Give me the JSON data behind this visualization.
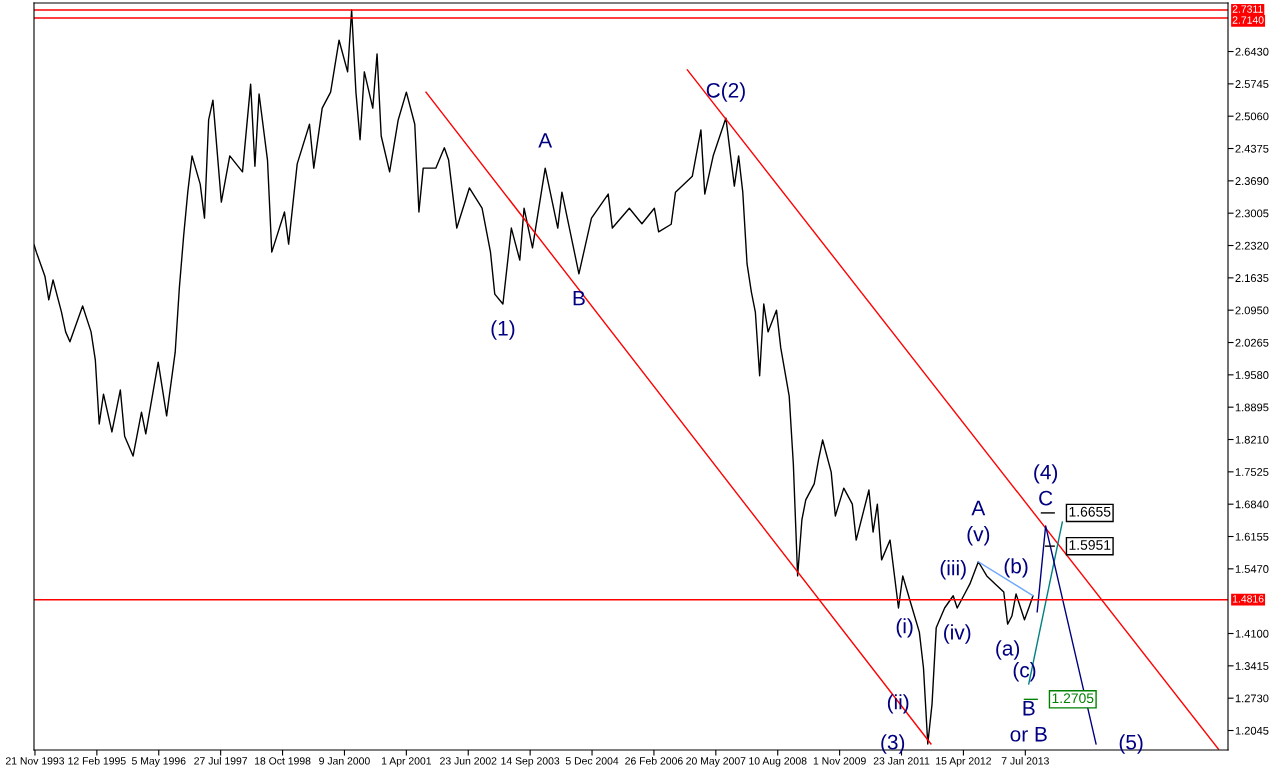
{
  "chart_data": {
    "type": "line",
    "series": [
      {
        "color": "#000000",
        "x": [
          "1993-11-15",
          "1993-12",
          "1994-02",
          "1994-03",
          "1994-04",
          "1994-06",
          "1994-07",
          "1994-08",
          "1994-11",
          "1995-01",
          "1995-02",
          "1995-03",
          "1995-04",
          "1995-06",
          "1995-08",
          "1995-09",
          "1995-11",
          "1996-01",
          "1996-02",
          "1996-05",
          "1996-07",
          "1996-08",
          "1996-09",
          "1996-10",
          "1996-11",
          "1996-12",
          "1997-01",
          "1997-03",
          "1997-04",
          "1997-05",
          "1997-06",
          "1997-08",
          "1997-10",
          "1998-01",
          "1998-03",
          "1998-04",
          "1998-05",
          "1998-07",
          "1998-08",
          "1998-11",
          "1998-12",
          "1999-02",
          "1999-05",
          "1999-06",
          "1999-08",
          "1999-10",
          "1999-12",
          "2000-02",
          "2000-03",
          "2000-04",
          "2000-05",
          "2000-06",
          "2000-08",
          "2000-09",
          "2000-10",
          "2000-12",
          "2001-02",
          "2001-04",
          "2001-06",
          "2001-07",
          "2001-08",
          "2001-11",
          "2002-01",
          "2002-02",
          "2002-04",
          "2002-07",
          "2002-10",
          "2002-12",
          "2003-01",
          "2003-03",
          "2003-05",
          "2003-07",
          "2003-08",
          "2003-10",
          "2004-01",
          "2004-04",
          "2004-05",
          "2004-09",
          "2004-12",
          "2005-04",
          "2005-05",
          "2005-09",
          "2005-12",
          "2006-03",
          "2006-04",
          "2006-07",
          "2006-08",
          "2006-12",
          "2007-02",
          "2007-03",
          "2007-05",
          "2007-08",
          "2007-10",
          "2007-11",
          "2007-12",
          "2008-01",
          "2008-02",
          "2008-03",
          "2008-04",
          "2008-05",
          "2008-06",
          "2008-08",
          "2008-09",
          "2008-11",
          "2008-12",
          "2009-01",
          "2009-02",
          "2009-03",
          "2009-05",
          "2009-06",
          "2009-07",
          "2009-09",
          "2009-10",
          "2009-12",
          "2010-02",
          "2010-03",
          "2010-06",
          "2010-07",
          "2010-08",
          "2010-09",
          "2010-11",
          "2011-01",
          "2011-02",
          "2011-04",
          "2011-06",
          "2011-07",
          "2011-08",
          "2011-09",
          "2011-10",
          "2011-12",
          "2012-02",
          "2012-03",
          "2012-05",
          "2012-06",
          "2012-08",
          "2012-10",
          "2012-12",
          "2013-02",
          "2013-03",
          "2013-04",
          "2013-05",
          "2013-07",
          "2013-08",
          "2013-09"
        ],
        "values": [
          2.233,
          2.218,
          2.167,
          2.117,
          2.159,
          2.091,
          2.049,
          2.028,
          2.104,
          2.049,
          1.989,
          1.854,
          1.917,
          1.837,
          1.926,
          1.828,
          1.786,
          1.879,
          1.833,
          1.985,
          1.871,
          1.939,
          2.006,
          2.142,
          2.252,
          2.345,
          2.422,
          2.362,
          2.29,
          2.498,
          2.54,
          2.324,
          2.422,
          2.388,
          2.574,
          2.4,
          2.553,
          2.413,
          2.218,
          2.303,
          2.235,
          2.405,
          2.489,
          2.396,
          2.523,
          2.557,
          2.667,
          2.6,
          2.731,
          2.557,
          2.456,
          2.6,
          2.523,
          2.638,
          2.464,
          2.388,
          2.498,
          2.557,
          2.489,
          2.303,
          2.396,
          2.396,
          2.439,
          2.413,
          2.269,
          2.354,
          2.311,
          2.218,
          2.129,
          2.108,
          2.269,
          2.201,
          2.311,
          2.227,
          2.396,
          2.269,
          2.345,
          2.172,
          2.29,
          2.341,
          2.269,
          2.311,
          2.278,
          2.311,
          2.261,
          2.277,
          2.345,
          2.379,
          2.477,
          2.341,
          2.422,
          2.502,
          2.358,
          2.422,
          2.345,
          2.193,
          2.134,
          2.091,
          1.956,
          2.108,
          2.049,
          2.095,
          2.015,
          1.913,
          1.769,
          1.532,
          1.651,
          1.693,
          1.727,
          1.778,
          1.82,
          1.752,
          1.659,
          1.718,
          1.684,
          1.608,
          1.714,
          1.625,
          1.684,
          1.566,
          1.608,
          1.464,
          1.532,
          1.473,
          1.413,
          1.337,
          1.176,
          1.261,
          1.422,
          1.464,
          1.49,
          1.464,
          1.498,
          1.515,
          1.562,
          1.532,
          1.515,
          1.498,
          1.43,
          1.447,
          1.494,
          1.439,
          1.464,
          1.49
        ]
      },
      {
        "color": "#ff0000",
        "x": [
          "2001-08-21",
          "2011-08-24"
        ],
        "values": [
          2.557,
          1.176
        ]
      },
      {
        "color": "#ff0000",
        "x": [
          "2006-10-26",
          "2017-05-05"
        ],
        "values": [
          2.604,
          1.165
        ]
      },
      {
        "color": "#6fa8ff",
        "x": [
          "2012-08",
          "2013-09"
        ],
        "values": [
          1.562,
          1.49
        ]
      },
      {
        "color": "#008080",
        "x": [
          "2013-08",
          "2014-04"
        ],
        "values": [
          1.303,
          1.646
        ]
      },
      {
        "color": "#000080",
        "x": [
          "2013-10",
          "2013-12",
          "2014-12"
        ],
        "values": [
          1.456,
          1.638,
          1.176
        ]
      },
      {
        "color": "#000000",
        "x": [
          "2013-11",
          "2014-02"
        ],
        "values": [
          1.6655,
          1.6655
        ]
      },
      {
        "color": "#000000",
        "x": [
          "2013-12",
          "2014-02"
        ],
        "values": [
          1.5951,
          1.5951
        ]
      },
      {
        "color": "#008000",
        "x": [
          "2013-07",
          "2013-10"
        ],
        "values": [
          1.2705,
          1.2705
        ]
      }
    ],
    "xlim": [
      "1993-11-14",
      "2017-07-13"
    ],
    "xticks": [
      {
        "value": "1993-11-21",
        "label": "21 Nov 1993"
      },
      {
        "value": "1995-02-12",
        "label": "12 Feb 1995"
      },
      {
        "value": "1996-05-05",
        "label": "5 May 1996"
      },
      {
        "value": "1997-07-27",
        "label": "27 Jul 1997"
      },
      {
        "value": "1998-10-18",
        "label": "18 Oct 1998"
      },
      {
        "value": "2000-01-09",
        "label": "9 Jan 2000"
      },
      {
        "value": "2001-04-01",
        "label": "1 Apr 2001"
      },
      {
        "value": "2002-06-23",
        "label": "23 Jun 2002"
      },
      {
        "value": "2003-09-14",
        "label": "14 Sep 2003"
      },
      {
        "value": "2004-12-05",
        "label": "5 Dec 2004"
      },
      {
        "value": "2006-02-26",
        "label": "26 Feb 2006"
      },
      {
        "value": "2007-05-20",
        "label": "20 May 2007"
      },
      {
        "value": "2008-08-10",
        "label": "10 Aug 2008"
      },
      {
        "value": "2009-11-01",
        "label": "1 Nov 2009"
      },
      {
        "value": "2011-01-23",
        "label": "23 Jan 2011"
      },
      {
        "value": "2012-04-15",
        "label": "15 Apr 2012"
      },
      {
        "value": "2013-07-07",
        "label": "7 Jul 2013"
      }
    ],
    "ylim": [
      1.1632,
      2.7458
    ],
    "yticks": [
      {
        "value": 2.643,
        "label": "2.6430"
      },
      {
        "value": 2.5745,
        "label": "2.5745"
      },
      {
        "value": 2.506,
        "label": "2.5060"
      },
      {
        "value": 2.4375,
        "label": "2.4375"
      },
      {
        "value": 2.369,
        "label": "2.3690"
      },
      {
        "value": 2.3005,
        "label": "2.3005"
      },
      {
        "value": 2.232,
        "label": "2.2320"
      },
      {
        "value": 2.1635,
        "label": "2.1635"
      },
      {
        "value": 2.095,
        "label": "2.0950"
      },
      {
        "value": 2.0265,
        "label": "2.0265"
      },
      {
        "value": 1.958,
        "label": "1.9580"
      },
      {
        "value": 1.8895,
        "label": "1.8895"
      },
      {
        "value": 1.821,
        "label": "1.8210"
      },
      {
        "value": 1.7525,
        "label": "1.7525"
      },
      {
        "value": 1.684,
        "label": "1.6840"
      },
      {
        "value": 1.6155,
        "label": "1.6155"
      },
      {
        "value": 1.547,
        "label": "1.5470"
      },
      {
        "value": 1.41,
        "label": "1.4100"
      },
      {
        "value": 1.3415,
        "label": "1.3415"
      },
      {
        "value": 1.273,
        "label": "1.2730"
      },
      {
        "value": 1.2045,
        "label": "1.2045"
      }
    ],
    "ref_lines": [
      {
        "axis": "y",
        "value": 2.7311,
        "label": "2.7311",
        "color": "#ff0000"
      },
      {
        "axis": "y",
        "value": 2.714,
        "label": "2.7140",
        "color": "#ff0000"
      },
      {
        "axis": "y",
        "value": 1.4816,
        "label": "1.4816",
        "color": "#ff0000"
      }
    ],
    "annotations": [
      {
        "text": "(1)",
        "x": "2003-03",
        "y": 2.108
      },
      {
        "text": "A",
        "x": "2004-01",
        "y": 2.396
      },
      {
        "text": "B",
        "x": "2004-09",
        "y": 2.172
      },
      {
        "text": "C(2)",
        "x": "2007-08",
        "y": 2.502
      },
      {
        "text": "(3)",
        "x": "2011-08",
        "y": 1.176
      },
      {
        "text": "(i)",
        "x": "2011-10",
        "y": 1.422
      },
      {
        "text": "(ii)",
        "x": "2011-09",
        "y": 1.261
      },
      {
        "text": "(iii)",
        "x": "2012-02",
        "y": 1.49
      },
      {
        "text": "(iv)",
        "x": "2012-03",
        "y": 1.464
      },
      {
        "text": "(v)",
        "x": "2012-08",
        "y": 1.562
      },
      {
        "text": "A",
        "x": "2012-08",
        "y": 1.562
      },
      {
        "text": "(b)",
        "x": "2013-05",
        "y": 1.494
      },
      {
        "text": "(a)",
        "x": "2013-03",
        "y": 1.43
      },
      {
        "text": "(c)",
        "x": "2013-07",
        "y": 1.439
      },
      {
        "text": "B",
        "x": "2013-08",
        "y": 1.303
      },
      {
        "text": "or B",
        "x": "2013-08",
        "y": 1.303
      },
      {
        "text": "C",
        "x": "2013-12",
        "y": 1.638
      },
      {
        "text": "(4)",
        "x": "2013-12",
        "y": 1.638
      },
      {
        "text": "(5)",
        "x": "2014-12",
        "y": 1.176
      },
      {
        "text": "1.6655",
        "x": "2014-02",
        "y": 1.6655
      },
      {
        "text": "1.5951",
        "x": "2014-02",
        "y": 1.5951
      },
      {
        "text": "1.2705",
        "x": "2013-10",
        "y": 1.2705
      }
    ],
    "grid": false,
    "legend": false,
    "marker": "none",
    "line_style": "solid"
  }
}
